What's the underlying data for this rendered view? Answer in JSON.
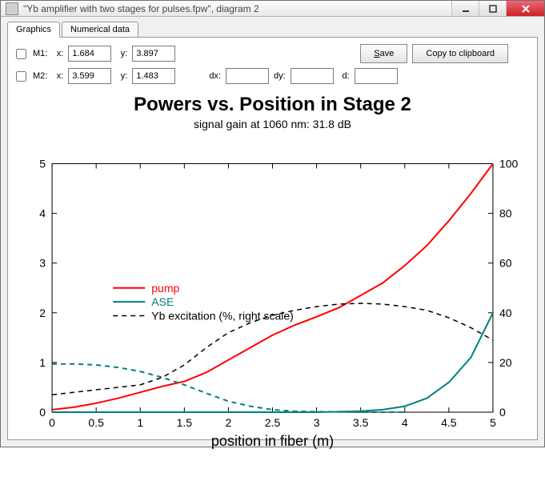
{
  "window": {
    "title": "\"Yb amplifier with two stages for pulses.fpw\", diagram 2"
  },
  "tabs": {
    "items": [
      {
        "label": "Graphics",
        "active": true
      },
      {
        "label": "Numerical data",
        "active": false
      }
    ]
  },
  "markers": {
    "m1": {
      "label": "M1:",
      "x_label": "x:",
      "x": "1.684",
      "y_label": "y:",
      "y": "3.897"
    },
    "m2": {
      "label": "M2:",
      "x_label": "x:",
      "x": "3.599",
      "y_label": "y:",
      "y": "1.483"
    },
    "dx_label": "dx:",
    "dy_label": "dy:",
    "d_label": "d:"
  },
  "buttons": {
    "save": "Save",
    "copy": "Copy to clipboard"
  },
  "chart": {
    "title": "Powers vs. Position in Stage 2",
    "subtitle": "signal gain at 1060 nm: 31.8 dB",
    "xlabel": "position in fiber (m)",
    "xlim": [
      0,
      5
    ],
    "xticks": [
      0,
      0.5,
      1,
      1.5,
      2,
      2.5,
      3,
      3.5,
      4,
      4.5,
      5
    ],
    "ylim_left": [
      0,
      5
    ],
    "yticks_left": [
      0,
      1,
      2,
      3,
      4,
      5
    ],
    "ylim_right": [
      0,
      100
    ],
    "yticks_right": [
      0,
      20,
      40,
      60,
      80,
      100
    ],
    "grid_color": "#000000",
    "background": "#ffffff",
    "axis_fontsize": 18,
    "tick_fontsize": 14,
    "title_fontsize": 24,
    "subtitle_fontsize": 14,
    "legend_fontsize": 14,
    "legend": {
      "x": 1.1,
      "y_start": 2.5,
      "items": [
        {
          "label": "pump",
          "color": "#ff0000",
          "dash": "solid",
          "width": 2
        },
        {
          "label": "ASE",
          "color": "#008080",
          "dash": "solid",
          "width": 2
        },
        {
          "label": "Yb excitation (%, right scale)",
          "color": "#000000",
          "dash": "dashed",
          "width": 1.5
        }
      ]
    },
    "series": [
      {
        "name": "pump",
        "color": "#ff0000",
        "dash": "solid",
        "width": 2,
        "axis": "left",
        "points": [
          [
            0,
            0.05
          ],
          [
            0.25,
            0.1
          ],
          [
            0.5,
            0.18
          ],
          [
            0.75,
            0.28
          ],
          [
            1,
            0.4
          ],
          [
            1.25,
            0.52
          ],
          [
            1.5,
            0.62
          ],
          [
            1.75,
            0.8
          ],
          [
            2,
            1.05
          ],
          [
            2.25,
            1.3
          ],
          [
            2.5,
            1.55
          ],
          [
            2.75,
            1.75
          ],
          [
            3,
            1.92
          ],
          [
            3.25,
            2.1
          ],
          [
            3.5,
            2.35
          ],
          [
            3.75,
            2.6
          ],
          [
            4,
            2.95
          ],
          [
            4.25,
            3.35
          ],
          [
            4.5,
            3.85
          ],
          [
            4.75,
            4.4
          ],
          [
            5,
            5.0
          ]
        ]
      },
      {
        "name": "ASE-dash",
        "color": "#008080",
        "dash": "dashed",
        "width": 2,
        "axis": "left",
        "points": [
          [
            0,
            0.97
          ],
          [
            0.25,
            0.97
          ],
          [
            0.5,
            0.95
          ],
          [
            0.75,
            0.9
          ],
          [
            1,
            0.82
          ],
          [
            1.25,
            0.7
          ],
          [
            1.5,
            0.55
          ],
          [
            1.75,
            0.38
          ],
          [
            2,
            0.22
          ],
          [
            2.25,
            0.12
          ],
          [
            2.5,
            0.05
          ],
          [
            2.75,
            0.02
          ],
          [
            3,
            0.01
          ],
          [
            3.5,
            0.0
          ],
          [
            4,
            0.0
          ]
        ]
      },
      {
        "name": "ASE-solid",
        "color": "#008080",
        "dash": "solid",
        "width": 2,
        "axis": "left",
        "points": [
          [
            0,
            0.0
          ],
          [
            2.5,
            0.0
          ],
          [
            3,
            0.0
          ],
          [
            3.5,
            0.02
          ],
          [
            3.75,
            0.05
          ],
          [
            4,
            0.12
          ],
          [
            4.25,
            0.28
          ],
          [
            4.5,
            0.6
          ],
          [
            4.75,
            1.1
          ],
          [
            5,
            2.0
          ]
        ]
      },
      {
        "name": "yb-excitation",
        "color": "#000000",
        "dash": "dashed",
        "width": 1.5,
        "axis": "right",
        "points": [
          [
            0,
            7
          ],
          [
            0.25,
            8
          ],
          [
            0.5,
            9
          ],
          [
            0.75,
            10
          ],
          [
            1,
            11
          ],
          [
            1.25,
            14
          ],
          [
            1.5,
            19
          ],
          [
            1.75,
            26
          ],
          [
            2,
            32
          ],
          [
            2.25,
            36
          ],
          [
            2.5,
            39
          ],
          [
            2.75,
            41
          ],
          [
            3,
            42.5
          ],
          [
            3.25,
            43.5
          ],
          [
            3.5,
            43.8
          ],
          [
            3.75,
            43.5
          ],
          [
            4,
            42.5
          ],
          [
            4.25,
            41
          ],
          [
            4.5,
            38
          ],
          [
            4.75,
            34
          ],
          [
            5,
            29
          ]
        ]
      }
    ]
  }
}
